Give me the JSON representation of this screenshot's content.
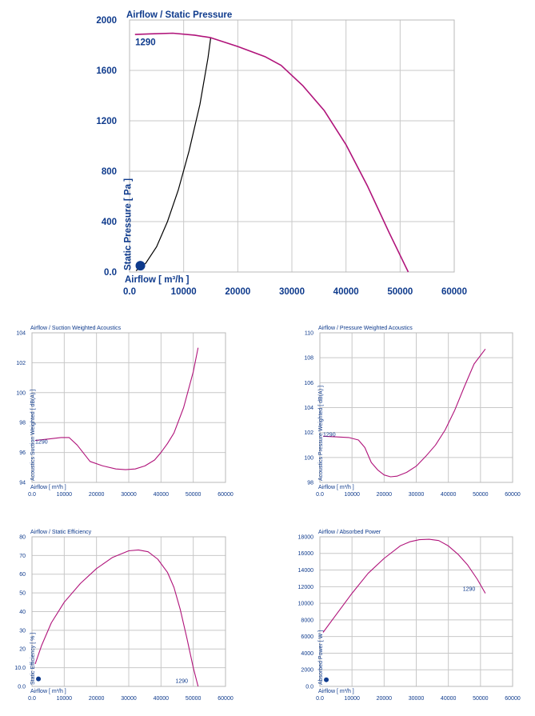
{
  "colors": {
    "curve": "#b0137a",
    "text": "#0e3a8c",
    "point": "#0e3a8c",
    "system": "#000000",
    "grid": "#c8c8c8"
  },
  "chart_data": [
    {
      "type": "line",
      "title": "Airflow / Static Pressure",
      "xlabel": "Airflow [ m³/h ]",
      "ylabel": "Static Pressure [ Pa ]",
      "curve_label": "1290",
      "xlim": [
        0,
        60000
      ],
      "ylim": [
        0,
        2000
      ],
      "xticks": [
        0,
        10000,
        20000,
        30000,
        40000,
        50000,
        60000
      ],
      "xtick_labels": [
        "0.0",
        "10000",
        "20000",
        "30000",
        "40000",
        "50000",
        "60000"
      ],
      "yticks": [
        0,
        400,
        800,
        1200,
        1600,
        2000
      ],
      "ytick_labels": [
        "0.0",
        "400",
        "800",
        "1200",
        "1600",
        "2000"
      ],
      "series": [
        {
          "x": [
            1000,
            4000,
            8000,
            12000,
            15000,
            20000,
            25000,
            28000,
            32000,
            36000,
            40000,
            44000,
            48000,
            51500
          ],
          "y": [
            1885,
            1890,
            1895,
            1880,
            1860,
            1790,
            1710,
            1640,
            1480,
            1280,
            1010,
            680,
            310,
            0
          ]
        }
      ],
      "system_curve": {
        "x": [
          1200,
          3000,
          5000,
          7000,
          9000,
          11000,
          13000,
          14500,
          15000
        ],
        "y": [
          10,
          70,
          200,
          400,
          650,
          960,
          1330,
          1700,
          1860
        ]
      },
      "operating_point": {
        "x": 2000,
        "y": 50
      }
    },
    {
      "type": "line",
      "title": "Airflow / Suction Weighted Acoustics",
      "xlabel": "Airflow [ m³/h ]",
      "ylabel": "Acoustics Suction Weighted [ dB(A) ]",
      "curve_label": "1290",
      "xlim": [
        0,
        60000
      ],
      "ylim": [
        94,
        104
      ],
      "xticks": [
        0,
        10000,
        20000,
        30000,
        40000,
        50000,
        60000
      ],
      "xtick_labels": [
        "0.0",
        "10000",
        "20000",
        "30000",
        "40000",
        "50000",
        "60000"
      ],
      "yticks": [
        94,
        96,
        98,
        100,
        102,
        104
      ],
      "ytick_labels": [
        "94",
        "96",
        "98",
        "100",
        "102",
        "104"
      ],
      "series": [
        {
          "x": [
            1000,
            5000,
            9000,
            11500,
            14000,
            18000,
            22000,
            26000,
            29000,
            32000,
            35000,
            38000,
            40000,
            42000,
            44000,
            47000,
            50000,
            51500
          ],
          "y": [
            96.8,
            96.9,
            97.0,
            97.0,
            96.5,
            95.4,
            95.1,
            94.9,
            94.85,
            94.9,
            95.1,
            95.5,
            96.0,
            96.6,
            97.3,
            99.0,
            101.4,
            103.0
          ]
        }
      ]
    },
    {
      "type": "line",
      "title": "Airflow / Pressure Weighted Acoustics",
      "xlabel": "Airflow [ m³/h ]",
      "ylabel": "Acoustics Pressure Weighted [ dB(A) ]",
      "curve_label": "1290",
      "xlim": [
        0,
        60000
      ],
      "ylim": [
        98,
        110
      ],
      "xticks": [
        0,
        10000,
        20000,
        30000,
        40000,
        50000,
        60000
      ],
      "xtick_labels": [
        "0.0",
        "10000",
        "20000",
        "30000",
        "40000",
        "50000",
        "60000"
      ],
      "yticks": [
        98,
        100,
        102,
        104,
        106,
        108,
        110
      ],
      "ytick_labels": [
        "98",
        "100",
        "102",
        "104",
        "106",
        "108",
        "110"
      ],
      "series": [
        {
          "x": [
            1000,
            5000,
            9000,
            12000,
            14000,
            16000,
            18000,
            20000,
            22000,
            24000,
            27000,
            30000,
            33000,
            36000,
            39000,
            42000,
            45000,
            48000,
            51500
          ],
          "y": [
            101.7,
            101.65,
            101.6,
            101.4,
            100.8,
            99.6,
            99.0,
            98.6,
            98.45,
            98.5,
            98.8,
            99.3,
            100.1,
            101.0,
            102.2,
            103.8,
            105.7,
            107.5,
            108.7
          ]
        }
      ]
    },
    {
      "type": "line",
      "title": "Airflow / Static Efficiency",
      "xlabel": "Airflow [ m³/h ]",
      "ylabel": "Static Efficiency [ % ]",
      "curve_label": "1290",
      "xlim": [
        0,
        60000
      ],
      "ylim": [
        0,
        80
      ],
      "xticks": [
        0,
        10000,
        20000,
        30000,
        40000,
        50000,
        60000
      ],
      "xtick_labels": [
        "0.0",
        "10000",
        "20000",
        "30000",
        "40000",
        "50000",
        "60000"
      ],
      "yticks": [
        0,
        10,
        20,
        30,
        40,
        50,
        60,
        70,
        80
      ],
      "ytick_labels": [
        "0.0",
        "10.0",
        "20",
        "30",
        "40",
        "50",
        "60",
        "70",
        "80"
      ],
      "series": [
        {
          "x": [
            1000,
            3000,
            6000,
            10000,
            15000,
            20000,
            25000,
            30000,
            33000,
            36000,
            39000,
            42000,
            44000,
            46000,
            48000,
            50000,
            51500
          ],
          "y": [
            12,
            22,
            34,
            45,
            55,
            63,
            69,
            72.5,
            73,
            72,
            68,
            61,
            53,
            41,
            26,
            10,
            0
          ]
        }
      ],
      "operating_point": {
        "x": 2000,
        "y": 4
      }
    },
    {
      "type": "line",
      "title": "Airflow / Absorbed Power",
      "xlabel": "Airflow [ m³/h ]",
      "ylabel": "Absorbed Power [ W ]",
      "curve_label": "1290",
      "xlim": [
        0,
        60000
      ],
      "ylim": [
        0,
        18000
      ],
      "xticks": [
        0,
        10000,
        20000,
        30000,
        40000,
        50000,
        60000
      ],
      "xtick_labels": [
        "0.0",
        "10000",
        "20000",
        "30000",
        "40000",
        "50000",
        "60000"
      ],
      "yticks": [
        0,
        2000,
        4000,
        6000,
        8000,
        10000,
        12000,
        14000,
        16000,
        18000
      ],
      "ytick_labels": [
        "0.0",
        "2000",
        "4000",
        "6000",
        "8000",
        "10000",
        "12000",
        "14000",
        "16000",
        "18000"
      ],
      "series": [
        {
          "x": [
            1000,
            5000,
            10000,
            15000,
            20000,
            25000,
            28000,
            31000,
            34000,
            37000,
            40000,
            43000,
            46000,
            49000,
            51500
          ],
          "y": [
            6500,
            8600,
            11200,
            13600,
            15400,
            16900,
            17400,
            17650,
            17700,
            17550,
            16900,
            15900,
            14600,
            12900,
            11200
          ]
        }
      ],
      "operating_point": {
        "x": 2000,
        "y": 800
      }
    }
  ]
}
